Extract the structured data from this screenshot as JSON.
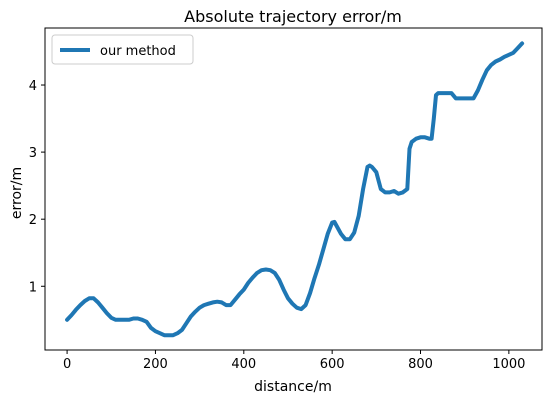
{
  "chart_data": {
    "type": "line",
    "title": "Absolute trajectory error/m",
    "xlabel": "distance/m",
    "ylabel": "error/m",
    "xlim": [
      -50,
      1075
    ],
    "ylim": [
      0.05,
      4.85
    ],
    "xticks": [
      0,
      200,
      400,
      600,
      800,
      1000
    ],
    "yticks": [
      1,
      2,
      3,
      4
    ],
    "grid": false,
    "legend_position": "top-left",
    "series": [
      {
        "name": "our method",
        "color": "#1f77b4",
        "x": [
          0,
          10,
          20,
          30,
          40,
          50,
          60,
          70,
          80,
          90,
          100,
          110,
          120,
          130,
          140,
          150,
          160,
          170,
          180,
          190,
          200,
          210,
          220,
          230,
          240,
          250,
          260,
          270,
          280,
          290,
          300,
          310,
          320,
          330,
          340,
          350,
          360,
          370,
          380,
          390,
          400,
          410,
          420,
          430,
          440,
          450,
          460,
          470,
          480,
          490,
          500,
          510,
          520,
          530,
          540,
          550,
          560,
          570,
          580,
          590,
          600,
          605,
          610,
          620,
          630,
          640,
          650,
          660,
          670,
          680,
          685,
          690,
          700,
          710,
          720,
          730,
          740,
          750,
          760,
          770,
          775,
          780,
          790,
          800,
          810,
          820,
          825,
          830,
          835,
          840,
          850,
          860,
          870,
          880,
          890,
          900,
          910,
          920,
          930,
          940,
          950,
          960,
          970,
          980,
          990,
          1000,
          1010,
          1020,
          1030
        ],
        "y": [
          0.5,
          0.57,
          0.65,
          0.72,
          0.78,
          0.82,
          0.82,
          0.76,
          0.68,
          0.6,
          0.53,
          0.5,
          0.5,
          0.5,
          0.5,
          0.52,
          0.52,
          0.5,
          0.47,
          0.38,
          0.33,
          0.3,
          0.27,
          0.27,
          0.27,
          0.3,
          0.35,
          0.45,
          0.55,
          0.62,
          0.68,
          0.72,
          0.74,
          0.76,
          0.77,
          0.76,
          0.72,
          0.72,
          0.8,
          0.88,
          0.95,
          1.05,
          1.13,
          1.2,
          1.24,
          1.25,
          1.24,
          1.2,
          1.1,
          0.95,
          0.82,
          0.74,
          0.68,
          0.66,
          0.72,
          0.9,
          1.12,
          1.32,
          1.55,
          1.78,
          1.95,
          1.96,
          1.9,
          1.78,
          1.7,
          1.7,
          1.8,
          2.05,
          2.45,
          2.78,
          2.8,
          2.78,
          2.7,
          2.45,
          2.4,
          2.4,
          2.42,
          2.38,
          2.4,
          2.45,
          3.05,
          3.15,
          3.2,
          3.22,
          3.22,
          3.2,
          3.2,
          3.5,
          3.85,
          3.88,
          3.88,
          3.88,
          3.88,
          3.8,
          3.8,
          3.8,
          3.8,
          3.8,
          3.92,
          4.08,
          4.22,
          4.3,
          4.35,
          4.38,
          4.42,
          4.45,
          4.48,
          4.55,
          4.62
        ]
      }
    ]
  }
}
